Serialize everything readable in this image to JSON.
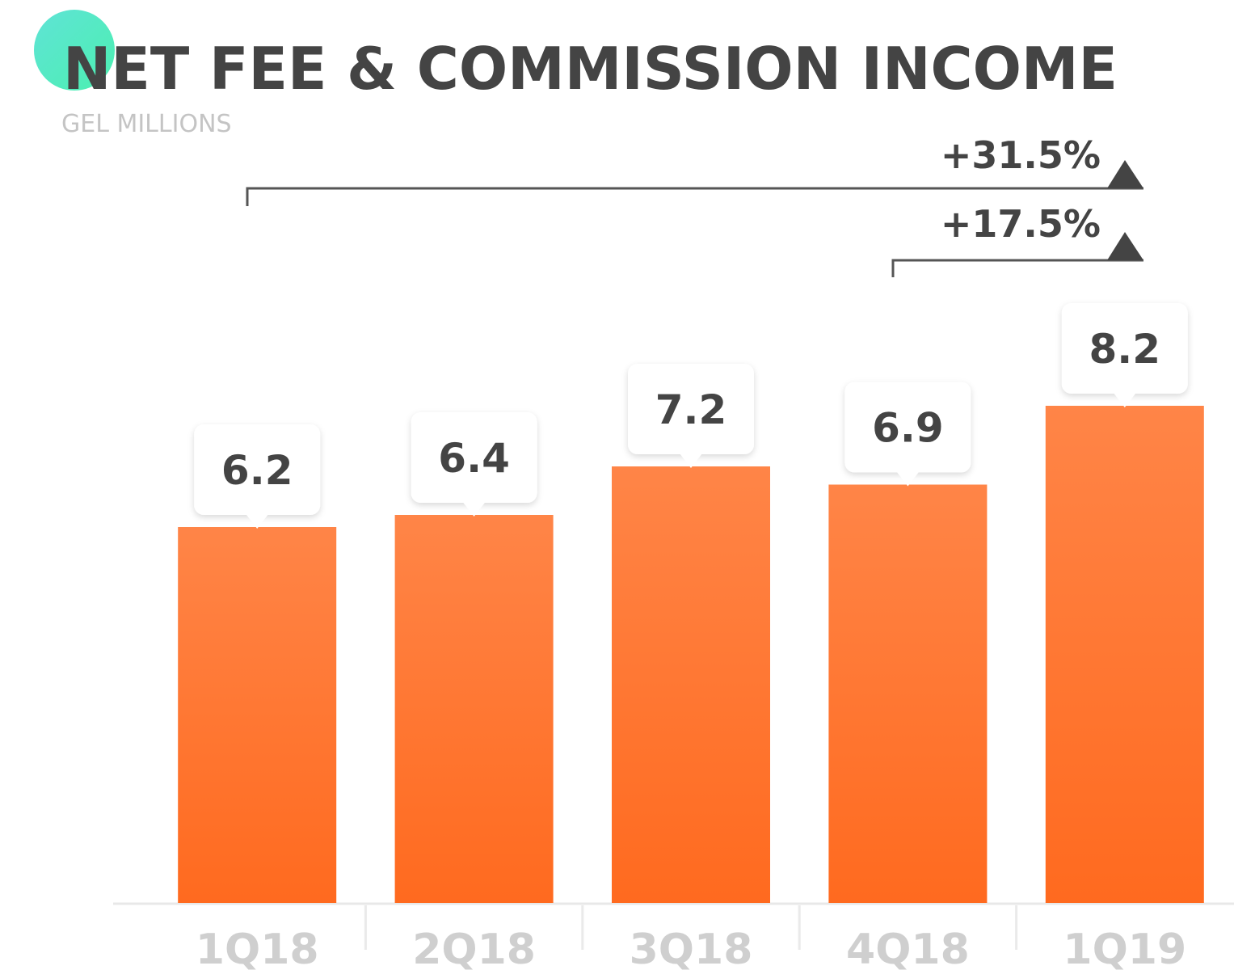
{
  "chart_data": {
    "type": "bar",
    "title": "NET FEE & COMMISSION INCOME",
    "subtitle": "GEL MILLIONS",
    "categories": [
      "1Q18",
      "2Q18",
      "3Q18",
      "4Q18",
      "1Q19"
    ],
    "values": [
      6.2,
      6.4,
      7.2,
      6.9,
      8.2
    ],
    "color": "#ff6a1f",
    "ylim": [
      0,
      10
    ],
    "annotations": [
      "+31.5%",
      "+17.5%"
    ]
  }
}
